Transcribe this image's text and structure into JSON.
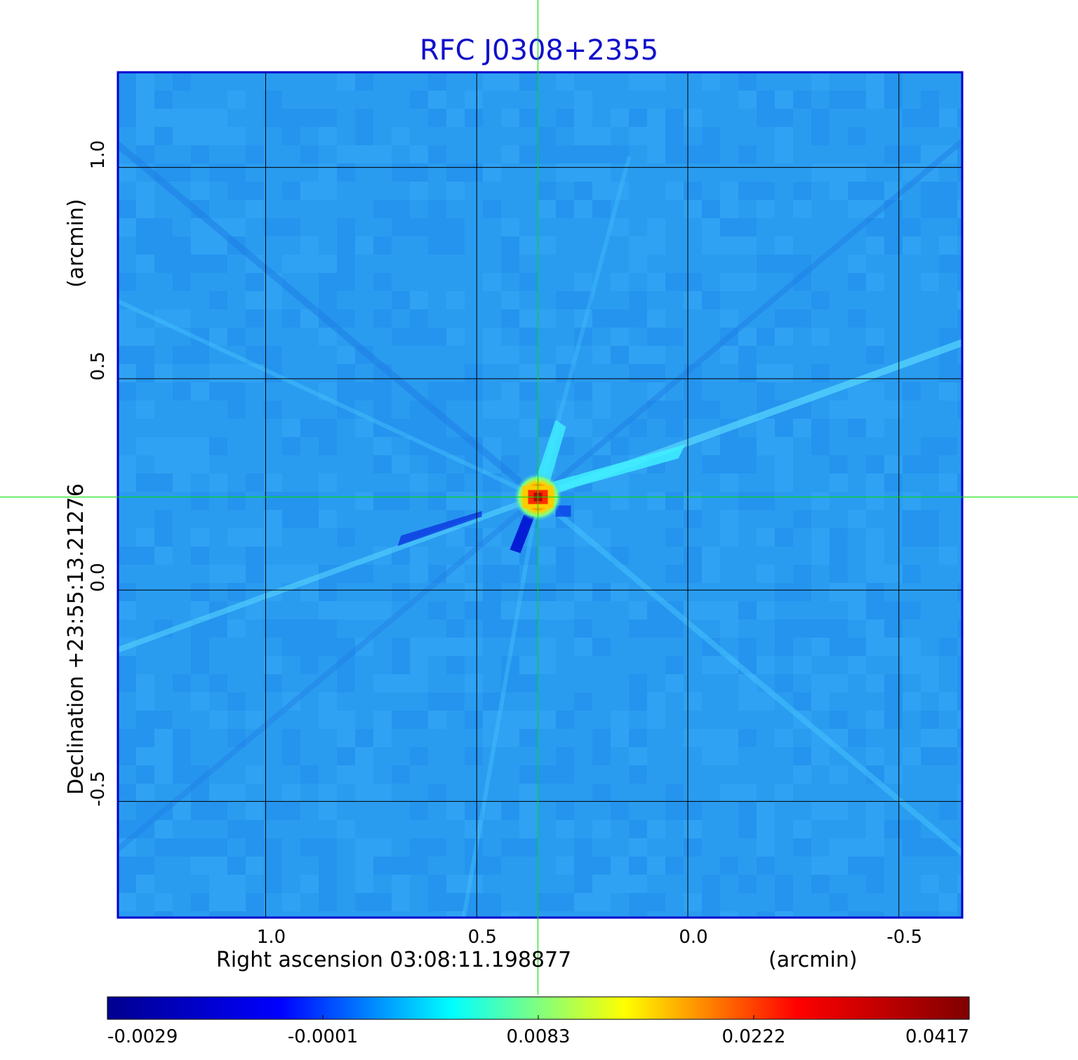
{
  "chart_data": {
    "type": "heatmap",
    "title": "RFC J0308+2355",
    "xlabel": "Right ascension  03:08:11.198877",
    "xunit": "(arcmin)",
    "ylabel": "Declination  +23:55:13.21276",
    "yunit": "(arcmin)",
    "xlim": [
      1.35,
      -0.65
    ],
    "ylim": [
      -0.775,
      1.225
    ],
    "x_ticks": [
      1.0,
      0.5,
      0.0,
      -0.5
    ],
    "x_tick_labels": [
      "1.0",
      "0.5",
      "0.0",
      "-0.5"
    ],
    "y_ticks": [
      1.0,
      0.5,
      0.0,
      -0.5
    ],
    "y_tick_labels": [
      "1.0",
      "0.5",
      "0.0",
      "-0.5"
    ],
    "grid": true,
    "crosshair": {
      "x": 0.355,
      "y": 0.22
    },
    "peak": {
      "x": 0.355,
      "y": 0.22,
      "value": 0.0417
    },
    "colorbar": {
      "min": -0.0029,
      "max": 0.0417,
      "ticks": [
        -0.0029,
        -0.0001,
        0.0083,
        0.0222,
        0.0417
      ],
      "tick_labels": [
        "-0.0029",
        "-0.0001",
        "0.0083",
        "0.0222",
        "0.0417"
      ],
      "colormap": [
        "#00008f",
        "#0000ff",
        "#00ffff",
        "#ffff00",
        "#ff0000",
        "#800000"
      ]
    }
  },
  "colors": {
    "title": "#1010cc",
    "frame": "#0000cc",
    "grid": "#000000",
    "crosshair": "#00dd00",
    "background_level": "#2a9cf0"
  }
}
